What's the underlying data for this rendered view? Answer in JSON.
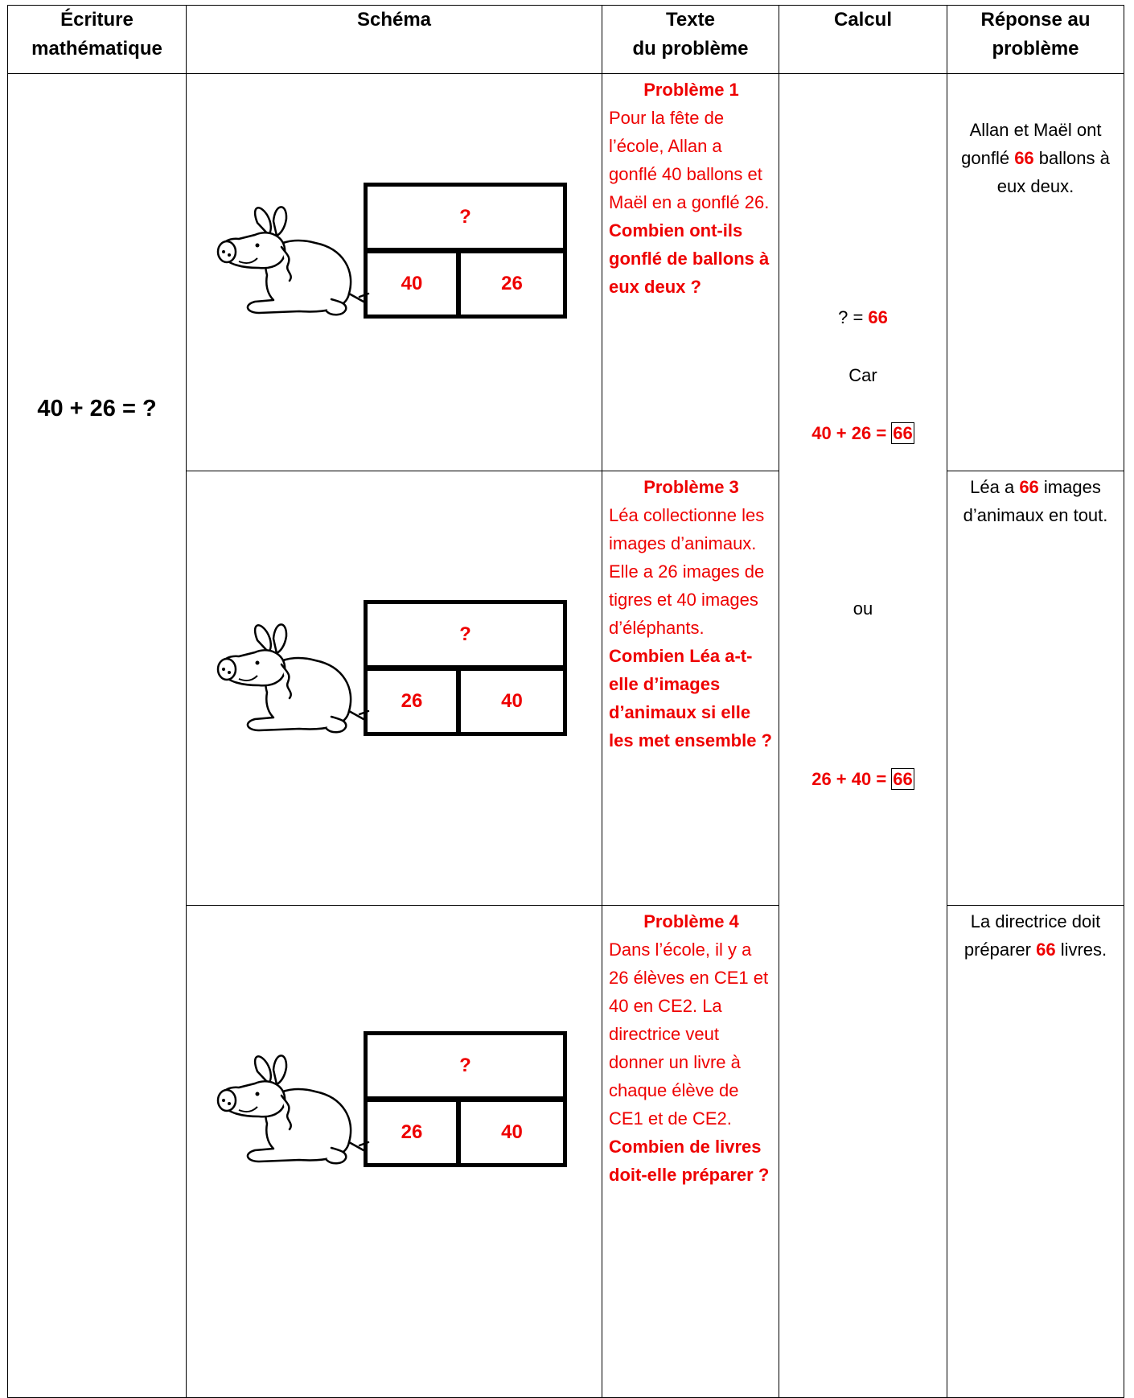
{
  "header": {
    "columns": [
      [
        "Écriture",
        "mathématique"
      ],
      [
        "Schéma"
      ],
      [
        "Texte",
        "du problème"
      ],
      [
        "Calcul"
      ],
      [
        "Réponse au",
        "problème"
      ]
    ]
  },
  "ecriture": "40 + 26 = ?",
  "rows": [
    {
      "schema": {
        "top": "?",
        "parts": [
          "40",
          "26"
        ]
      },
      "probleme": {
        "title": "Problème 1",
        "text": "Pour la fête de l’école, Allan a gonflé 40 ballons et Maël en a gonflé 26.",
        "question": "Combien ont-ils gonflé de ballons à eux deux ?"
      },
      "reponse": {
        "before": "Allan et Maël ont gonflé ",
        "number": "66",
        "after": " ballons à eux deux."
      }
    },
    {
      "schema": {
        "top": "?",
        "parts": [
          "26",
          "40"
        ]
      },
      "probleme": {
        "title": "Problème 3",
        "text": "Léa collectionne les images d’animaux. Elle a 26 images de tigres et 40 images d’éléphants.",
        "question": "Combien Léa a-t-elle d’images d’animaux si elle les met ensemble ?"
      },
      "reponse": {
        "before": "Léa a ",
        "number": "66",
        "after": " images d’animaux en tout."
      }
    },
    {
      "schema": {
        "top": "?",
        "parts": [
          "26",
          "40"
        ]
      },
      "probleme": {
        "title": "Problème 4",
        "text": "Dans l’école, il y a 26 élèves en CE1 et 40 en CE2. La directrice veut donner un livre à chaque élève de CE1 et de CE2.",
        "question": "Combien de livres doit-elle préparer ?"
      },
      "reponse": {
        "before": "La directrice doit préparer ",
        "number": "66",
        "after": " livres."
      }
    }
  ],
  "calcul": {
    "answer_label": "? = ",
    "answer": "66",
    "car": "Car",
    "eq1": "40 + 26 = ",
    "eq1_result": "66",
    "ou": "ou",
    "eq2": "26 + 40 = ",
    "eq2_result": "66"
  }
}
